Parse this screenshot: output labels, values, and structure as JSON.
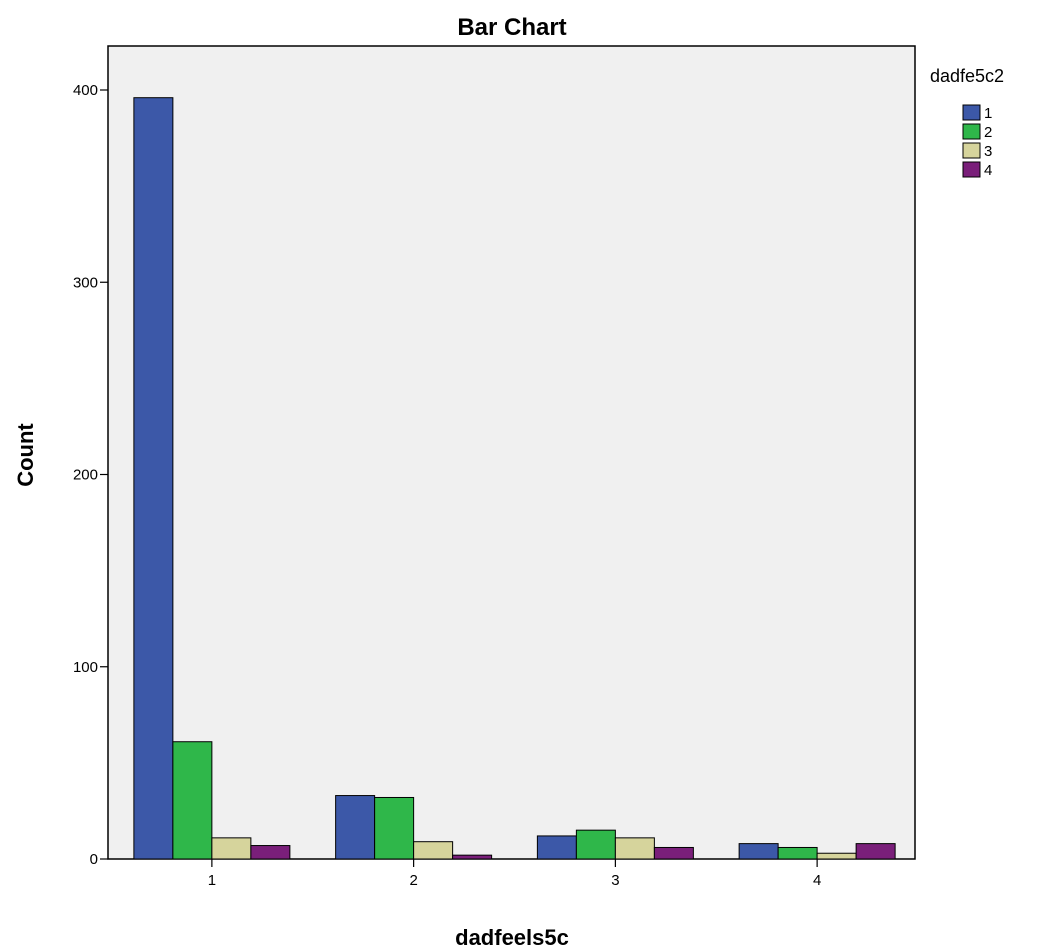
{
  "chart_data": {
    "type": "bar",
    "title": "Bar Chart",
    "xlabel": "dadfeels5c",
    "ylabel": "Count",
    "categories": [
      "1",
      "2",
      "3",
      "4"
    ],
    "ylim": [
      0,
      400
    ],
    "yticks": [
      0,
      100,
      200,
      300,
      400
    ],
    "ytick_labels": [
      "0",
      "100",
      "200",
      "300",
      "400"
    ],
    "grid": false,
    "legend": {
      "title": "dadfe5c2",
      "position": "right"
    },
    "series": [
      {
        "name": "1",
        "color": "#3c58a8",
        "values": [
          396,
          33,
          12,
          8
        ]
      },
      {
        "name": "2",
        "color": "#2fb74a",
        "values": [
          61,
          32,
          15,
          6
        ]
      },
      {
        "name": "3",
        "color": "#d6d49c",
        "values": [
          11,
          9,
          11,
          3
        ]
      },
      {
        "name": "4",
        "color": "#7a1f7a",
        "values": [
          7,
          2,
          6,
          8
        ]
      }
    ]
  }
}
